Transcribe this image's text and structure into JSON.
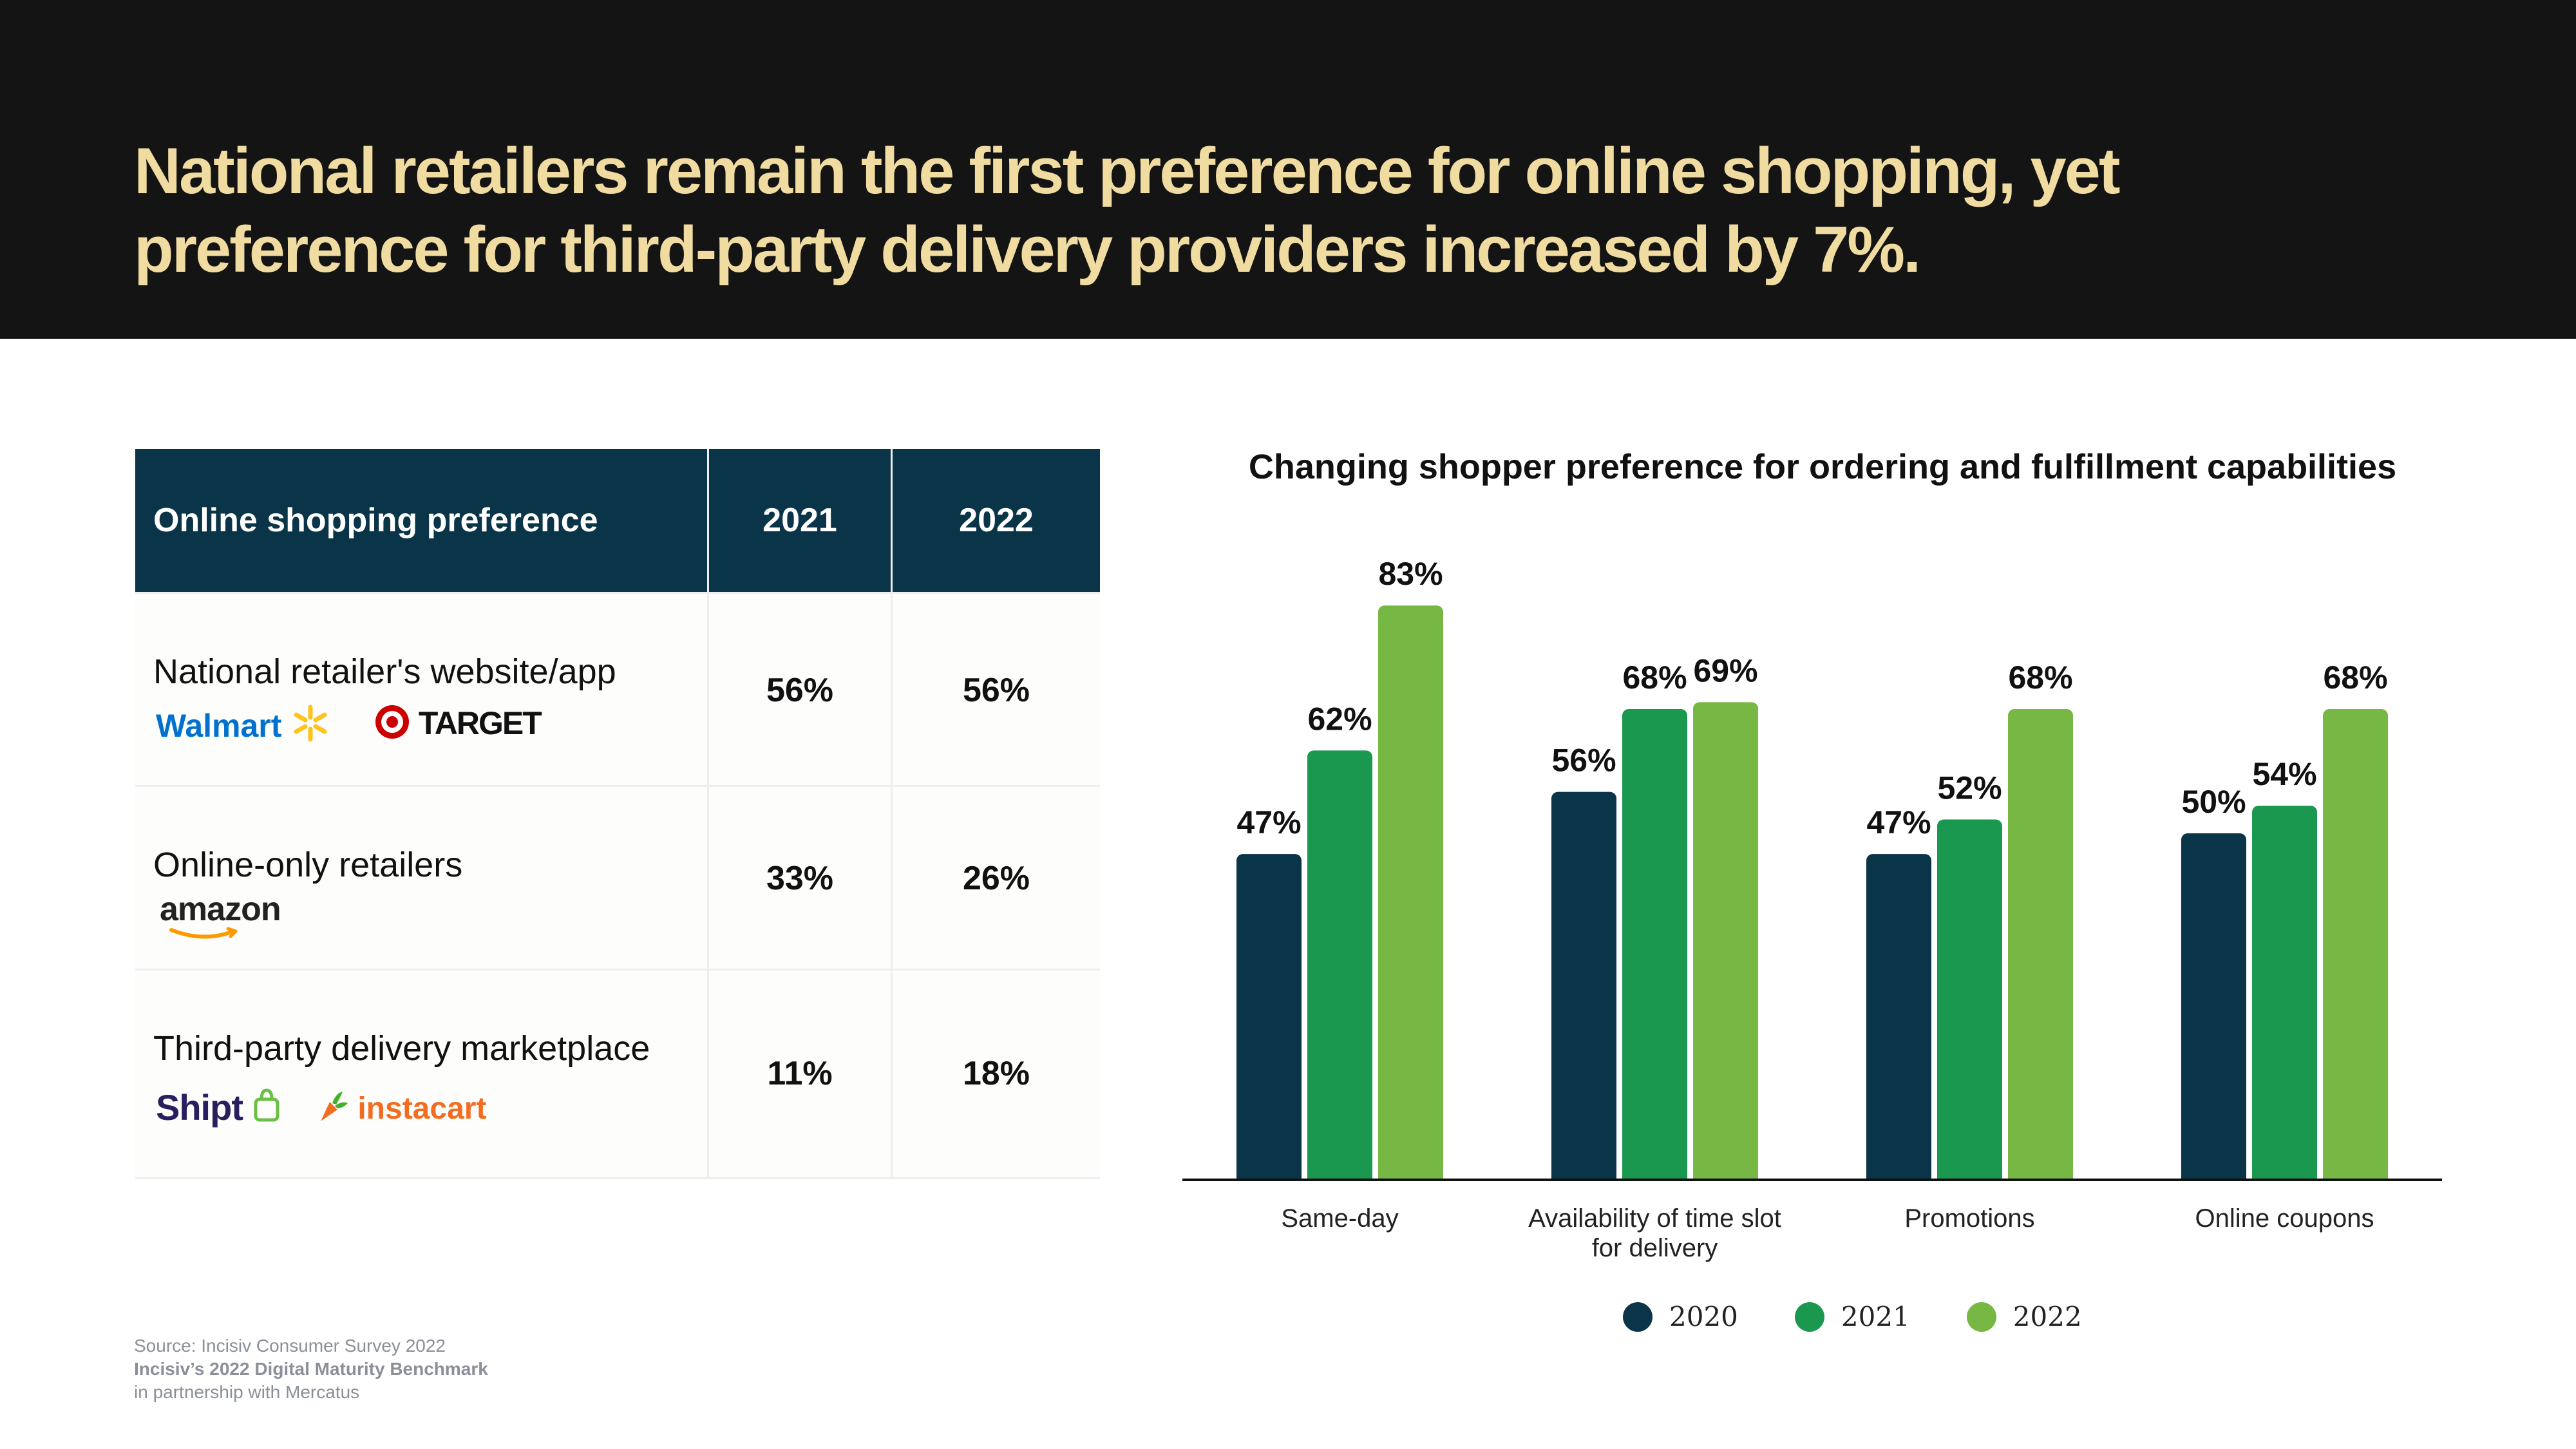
{
  "headline": {
    "line1": "National retailers remain the first preference for online shopping, yet",
    "line2": "preference for third-party delivery providers increased by  7%."
  },
  "table": {
    "header": [
      "Online shopping preference",
      "2021",
      "2022"
    ],
    "rows": [
      {
        "label": "National retailer's website/app",
        "v2021": "56%",
        "v2022": "56%",
        "logos": [
          "Walmart",
          "TARGET"
        ]
      },
      {
        "label": "Online-only retailers",
        "v2021": "33%",
        "v2022": "26%",
        "logos": [
          "amazon"
        ]
      },
      {
        "label": "Third-party delivery marketplace",
        "v2021": "11%",
        "v2022": "18%",
        "logos": [
          "Shipt",
          "instacart"
        ]
      }
    ]
  },
  "chart_data": {
    "type": "bar",
    "title": "Changing shopper preference for ordering and fulfillment capabilities",
    "categories": [
      [
        "Same-day"
      ],
      [
        "Availability of time slot",
        "for delivery"
      ],
      [
        "Promotions"
      ],
      [
        "Online coupons"
      ]
    ],
    "series": [
      {
        "name": "2020",
        "values": [
          47,
          56,
          47,
          50
        ],
        "color": "#0a3447"
      },
      {
        "name": "2021",
        "values": [
          62,
          68,
          52,
          54
        ],
        "color": "#1a9850"
      },
      {
        "name": "2022",
        "values": [
          83,
          69,
          68,
          68
        ],
        "color": "#76b843"
      }
    ],
    "value_suffix": "%",
    "ylim": [
      0,
      100
    ],
    "legend": "bottom",
    "grid": false
  },
  "source": {
    "line1": "Source: Incisiv Consumer Survey 2022",
    "line2": "Incisiv’s 2022 Digital Maturity Benchmark",
    "line3": "in partnership with Mercatus"
  },
  "colors": {
    "header_bg": "#141414",
    "headline": "#f0dca0",
    "table_header": "#0a3447",
    "walmart_blue": "#0071ce",
    "walmart_yellow": "#ffc220",
    "target_red": "#cc0000",
    "amazon_orange": "#ff9900",
    "shipt_purple": "#2a1f5e",
    "shipt_green": "#6bbf45",
    "instacart_orange": "#f36d21",
    "instacart_green": "#43b02a"
  }
}
